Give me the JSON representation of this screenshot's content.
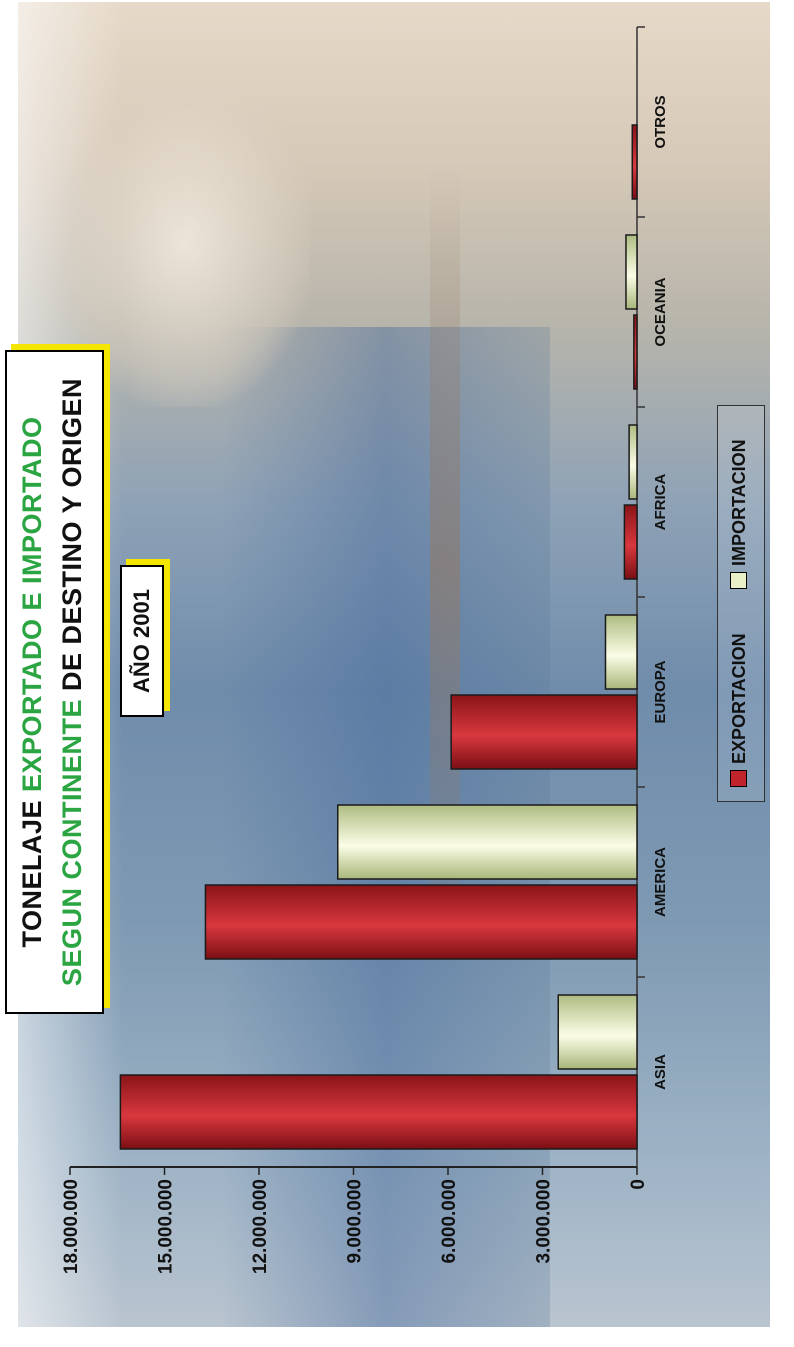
{
  "title": {
    "line1_a": "TONELAJE ",
    "line1_b": "EXPORTADO E IMPORTADO",
    "line2_a": "SEGUN CONTINENTE",
    "line2_b": " DE DESTINO Y ORIGEN"
  },
  "year_label": "AÑO 2001",
  "colors": {
    "exportacion": "#c0232b",
    "importacion": "#e9f0c8",
    "title_accent": "#2aa542",
    "box_shadow": "#f5e600"
  },
  "chart_data": {
    "type": "bar",
    "orientation": "vertical",
    "categories": [
      "ASIA",
      "AMERICA",
      "EUROPA",
      "AFRICA",
      "OCEANIA",
      "OTROS"
    ],
    "series": [
      {
        "name": "EXPORTACION",
        "values": [
          16400000,
          13700000,
          5900000,
          400000,
          100000,
          150000
        ]
      },
      {
        "name": "IMPORTACION",
        "values": [
          2500000,
          9500000,
          1000000,
          250000,
          350000,
          0
        ]
      }
    ],
    "ylim": [
      0,
      18000000
    ],
    "yticks": [
      0,
      3000000,
      6000000,
      9000000,
      12000000,
      15000000,
      18000000
    ],
    "ytick_labels": [
      "0",
      "3.000.000",
      "6.000.000",
      "9.000.000",
      "12.000.000",
      "15.000.000",
      "18.000.000"
    ],
    "legend": [
      "EXPORTACION",
      "IMPORTACION"
    ],
    "legend_position": "bottom",
    "grid": false
  }
}
